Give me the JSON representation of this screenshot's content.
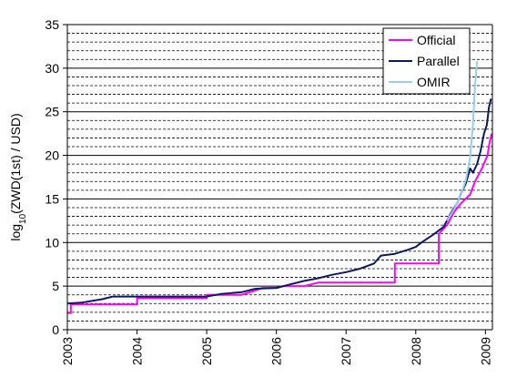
{
  "chart_data": {
    "type": "line",
    "title": "",
    "ylabel_main": "log",
    "ylabel_sub": "10",
    "ylabel_rest": "(ZWD(1st) / USD)",
    "xlabel": "",
    "xlim": [
      2003,
      2009.1
    ],
    "ylim": [
      0,
      35
    ],
    "y_major_ticks": [
      0,
      5,
      10,
      15,
      20,
      25,
      30,
      35
    ],
    "y_minor_step": 1,
    "x_ticks": [
      2003,
      2004,
      2005,
      2006,
      2007,
      2008,
      2009
    ],
    "grid": "horizontal major solid, minor dashed",
    "legend_position": "top-right",
    "series": [
      {
        "name": "Official",
        "color": "#ff00ff",
        "points": [
          [
            2003.0,
            1.9
          ],
          [
            2003.05,
            1.9
          ],
          [
            2003.05,
            2.9
          ],
          [
            2004.0,
            2.9
          ],
          [
            2004.0,
            3.6
          ],
          [
            2005.0,
            3.6
          ],
          [
            2005.0,
            4.0
          ],
          [
            2005.5,
            4.0
          ],
          [
            2005.7,
            4.5
          ],
          [
            2005.8,
            4.8
          ],
          [
            2006.0,
            4.8
          ],
          [
            2006.1,
            5.0
          ],
          [
            2006.4,
            5.0
          ],
          [
            2006.6,
            5.4
          ],
          [
            2007.7,
            5.4
          ],
          [
            2007.7,
            7.6
          ],
          [
            2008.33,
            7.6
          ],
          [
            2008.33,
            11.0
          ],
          [
            2008.45,
            12.0
          ],
          [
            2008.55,
            13.5
          ],
          [
            2008.65,
            14.5
          ],
          [
            2008.78,
            15.5
          ],
          [
            2008.85,
            17.0
          ],
          [
            2008.95,
            18.5
          ],
          [
            2009.03,
            20.0
          ],
          [
            2009.06,
            21.5
          ],
          [
            2009.09,
            22.5
          ]
        ]
      },
      {
        "name": "Parallel",
        "color": "#0a1a5c",
        "points": [
          [
            2003.0,
            3.0
          ],
          [
            2003.2,
            3.1
          ],
          [
            2003.5,
            3.5
          ],
          [
            2003.65,
            3.8
          ],
          [
            2004.0,
            3.8
          ],
          [
            2004.5,
            3.8
          ],
          [
            2005.0,
            3.8
          ],
          [
            2005.2,
            4.1
          ],
          [
            2005.5,
            4.3
          ],
          [
            2005.7,
            4.7
          ],
          [
            2006.0,
            4.8
          ],
          [
            2006.2,
            5.2
          ],
          [
            2006.4,
            5.6
          ],
          [
            2006.6,
            5.9
          ],
          [
            2006.8,
            6.3
          ],
          [
            2007.0,
            6.6
          ],
          [
            2007.2,
            7.0
          ],
          [
            2007.4,
            7.6
          ],
          [
            2007.5,
            8.5
          ],
          [
            2007.7,
            8.7
          ],
          [
            2007.9,
            9.2
          ],
          [
            2008.0,
            9.5
          ],
          [
            2008.1,
            10.1
          ],
          [
            2008.25,
            10.9
          ],
          [
            2008.4,
            11.8
          ],
          [
            2008.5,
            13.3
          ],
          [
            2008.6,
            14.6
          ],
          [
            2008.65,
            15.6
          ],
          [
            2008.72,
            16.8
          ],
          [
            2008.78,
            18.5
          ],
          [
            2008.82,
            18.0
          ],
          [
            2008.88,
            19.0
          ],
          [
            2008.93,
            20.5
          ],
          [
            2008.98,
            22.5
          ],
          [
            2009.02,
            23.5
          ],
          [
            2009.05,
            25.5
          ],
          [
            2009.08,
            26.5
          ]
        ]
      },
      {
        "name": "OMIR",
        "color": "#99ccf2",
        "points": [
          [
            2008.45,
            12.5
          ],
          [
            2008.55,
            13.8
          ],
          [
            2008.65,
            15.5
          ],
          [
            2008.72,
            17.2
          ],
          [
            2008.78,
            19.8
          ],
          [
            2008.82,
            23.5
          ],
          [
            2008.85,
            28.0
          ],
          [
            2008.88,
            30.8
          ]
        ]
      }
    ]
  }
}
